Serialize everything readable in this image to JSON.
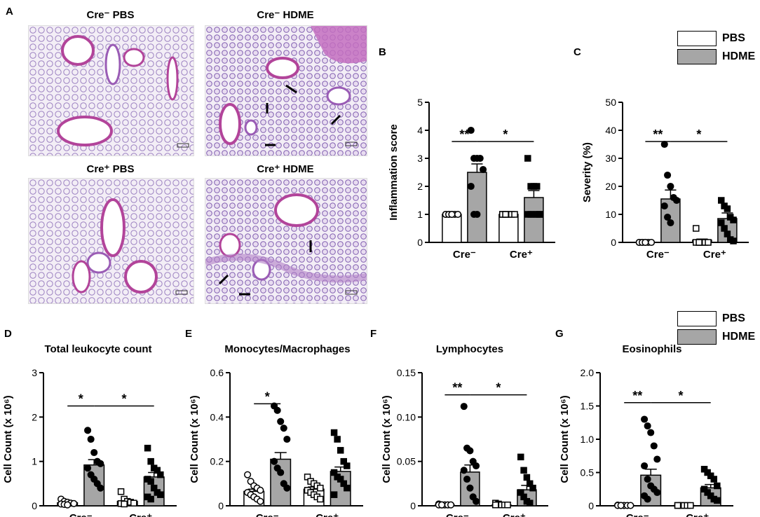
{
  "panel_labels": {
    "A": "A",
    "B": "B",
    "C": "C",
    "D": "D",
    "E": "E",
    "F": "F",
    "G": "G"
  },
  "histology": {
    "images": [
      {
        "title": "Cre⁻ PBS"
      },
      {
        "title": "Cre⁻ HDME"
      },
      {
        "title": "Cre⁺ PBS"
      },
      {
        "title": "Cre⁺ HDME"
      }
    ]
  },
  "legend_top": {
    "items": [
      {
        "label": "PBS",
        "color": "#ffffff"
      },
      {
        "label": "HDME",
        "color": "#a6a6a6"
      }
    ]
  },
  "legend_bottom": {
    "items": [
      {
        "label": "PBS",
        "color": "#ffffff"
      },
      {
        "label": "HDME",
        "color": "#a6a6a6"
      }
    ]
  },
  "colors": {
    "pbs": "#ffffff",
    "hdme": "#a6a6a6",
    "stroke": "#000000"
  },
  "chart_data": [
    {
      "id": "B",
      "type": "bar",
      "title": "",
      "ylabel": "Inflammation score",
      "ylim": [
        0,
        5
      ],
      "yticks": [
        {
          "v": 0,
          "t": "0"
        },
        {
          "v": 1,
          "t": "1"
        },
        {
          "v": 2,
          "t": "2"
        },
        {
          "v": 3,
          "t": "3"
        },
        {
          "v": 4,
          "t": "4"
        },
        {
          "v": 5,
          "t": "5"
        }
      ],
      "categories": [
        "Cre⁻",
        "Cre⁺"
      ],
      "series": [
        {
          "name": "PBS",
          "values": [
            1.0,
            1.0
          ],
          "sem": [
            0,
            0
          ]
        },
        {
          "name": "HDME",
          "values": [
            2.5,
            1.6
          ],
          "sem": [
            0.3,
            0.25
          ]
        }
      ],
      "points": {
        "pbs_marker": "circle",
        "hdme_marker": "circle",
        "pbs_marker2": "square",
        "hdme_marker2": "square",
        "cre_minus_pbs": [
          1,
          1,
          1,
          1,
          1,
          1,
          1,
          1
        ],
        "cre_minus_hdme": [
          4,
          3,
          3,
          3,
          2.6,
          2,
          1,
          1
        ],
        "cre_plus_pbs": [
          1,
          1,
          1,
          1,
          1,
          1,
          1
        ],
        "cre_plus_hdme": [
          3,
          2,
          2,
          2,
          1,
          1,
          1,
          1,
          1,
          1
        ]
      },
      "significance": [
        {
          "label": "**",
          "from": "cre_minus_pbs",
          "to": "cre_minus_hdme",
          "y": 3.6
        },
        {
          "label": "*",
          "from": "cre_minus_hdme",
          "to": "cre_plus_hdme",
          "y": 3.6
        }
      ]
    },
    {
      "id": "C",
      "type": "bar",
      "title": "",
      "ylabel": "Severity (%)",
      "ylim": [
        0,
        50
      ],
      "yticks": [
        {
          "v": 0,
          "t": "0"
        },
        {
          "v": 10,
          "t": "10"
        },
        {
          "v": 20,
          "t": "20"
        },
        {
          "v": 30,
          "t": "30"
        },
        {
          "v": 40,
          "t": "40"
        },
        {
          "v": 50,
          "t": "50"
        }
      ],
      "categories": [
        "Cre⁻",
        "Cre⁺"
      ],
      "series": [
        {
          "name": "PBS",
          "values": [
            0,
            0.8
          ],
          "sem": [
            0,
            0.4
          ]
        },
        {
          "name": "HDME",
          "values": [
            15.5,
            8.5
          ],
          "sem": [
            3.2,
            2.0
          ]
        }
      ],
      "points": {
        "cre_minus_pbs": [
          0,
          0,
          0,
          0,
          0,
          0,
          0,
          0
        ],
        "cre_minus_hdme": [
          35,
          24,
          20,
          16,
          15,
          13,
          9,
          7
        ],
        "cre_plus_pbs": [
          5,
          0,
          0,
          0,
          0,
          0,
          0
        ],
        "cre_plus_hdme": [
          15,
          13,
          12,
          9,
          8,
          7,
          5,
          3,
          1,
          0.5
        ]
      },
      "significance": [
        {
          "label": "**",
          "from": "cre_minus_pbs",
          "to": "cre_minus_hdme",
          "y": 36
        },
        {
          "label": "*",
          "from": "cre_minus_hdme",
          "to": "cre_plus_hdme",
          "y": 36
        }
      ]
    },
    {
      "id": "D",
      "type": "bar",
      "title": "Total leukocyte count",
      "ylabel": "Cell Count (x 10⁶)",
      "ylim": [
        0,
        3
      ],
      "yticks": [
        {
          "v": 0,
          "t": "0"
        },
        {
          "v": 1,
          "t": "1"
        },
        {
          "v": 2,
          "t": "2"
        },
        {
          "v": 3,
          "t": "3"
        }
      ],
      "categories": [
        "Cre⁻",
        "Cre⁺"
      ],
      "series": [
        {
          "name": "PBS",
          "values": [
            0.07,
            0.1
          ],
          "sem": [
            0.02,
            0.03
          ]
        },
        {
          "name": "HDME",
          "values": [
            0.92,
            0.65
          ],
          "sem": [
            0.12,
            0.1
          ]
        }
      ],
      "points": {
        "cre_minus_pbs": [
          0.15,
          0.1,
          0.08,
          0.06,
          0.05,
          0.04,
          0.03,
          0.02
        ],
        "cre_minus_hdme": [
          1.7,
          1.5,
          1.2,
          1.0,
          0.95,
          0.85,
          0.7,
          0.6,
          0.5,
          0.4
        ],
        "cre_plus_pbs": [
          0.32,
          0.15,
          0.1,
          0.08,
          0.06,
          0.05,
          0.04
        ],
        "cre_plus_hdme": [
          1.3,
          1.0,
          0.85,
          0.8,
          0.7,
          0.6,
          0.55,
          0.4,
          0.3,
          0.25,
          0.2,
          0.15
        ]
      },
      "significance": [
        {
          "label": "*",
          "from": "cre_minus_pbs",
          "to": "cre_minus_hdme",
          "y": 2.25
        },
        {
          "label": "*",
          "from": "cre_minus_hdme",
          "to": "cre_plus_hdme",
          "y": 2.25
        }
      ]
    },
    {
      "id": "E",
      "type": "bar",
      "title": "Monocytes/Macrophages",
      "ylabel": "Cell Count (x 10⁶)",
      "ylim": [
        0,
        0.6
      ],
      "yticks": [
        {
          "v": 0,
          "t": "0"
        },
        {
          "v": 0.2,
          "t": "0.2"
        },
        {
          "v": 0.4,
          "t": "0.4"
        },
        {
          "v": 0.6,
          "t": "0.6"
        }
      ],
      "categories": [
        "Cre⁻",
        "Cre⁺"
      ],
      "series": [
        {
          "name": "PBS",
          "values": [
            0.065,
            0.075
          ],
          "sem": [
            0.01,
            0.01
          ]
        },
        {
          "name": "HDME",
          "values": [
            0.21,
            0.155
          ],
          "sem": [
            0.03,
            0.02
          ]
        }
      ],
      "points": {
        "cre_minus_pbs": [
          0.14,
          0.11,
          0.09,
          0.08,
          0.07,
          0.06,
          0.05,
          0.04,
          0.03,
          0.02
        ],
        "cre_minus_hdme": [
          0.45,
          0.43,
          0.38,
          0.35,
          0.3,
          0.2,
          0.17,
          0.15,
          0.1,
          0.08
        ],
        "cre_plus_pbs": [
          0.13,
          0.11,
          0.1,
          0.09,
          0.08,
          0.07,
          0.06,
          0.05,
          0.04,
          0.03
        ],
        "cre_plus_hdme": [
          0.33,
          0.3,
          0.25,
          0.2,
          0.18,
          0.15,
          0.13,
          0.12,
          0.1,
          0.08,
          0.05
        ]
      },
      "significance": [
        {
          "label": "*",
          "from": "cre_minus_pbs",
          "to": "cre_minus_hdme",
          "y": 0.46
        }
      ]
    },
    {
      "id": "F",
      "type": "bar",
      "title": "Lymphocytes",
      "ylabel": "Cell Count (x 10⁶)",
      "ylim": [
        0,
        0.15
      ],
      "yticks": [
        {
          "v": 0,
          "t": "0"
        },
        {
          "v": 0.05,
          "t": "0.05"
        },
        {
          "v": 0.1,
          "t": "0.10"
        },
        {
          "v": 0.15,
          "t": "0.15"
        }
      ],
      "categories": [
        "Cre⁻",
        "Cre⁺"
      ],
      "series": [
        {
          "name": "PBS",
          "values": [
            0.001,
            0.001
          ],
          "sem": [
            0.0005,
            0.0005
          ]
        },
        {
          "name": "HDME",
          "values": [
            0.038,
            0.018
          ],
          "sem": [
            0.008,
            0.005
          ]
        }
      ],
      "points": {
        "cre_minus_pbs": [
          0.002,
          0.001,
          0.001,
          0.001,
          0.001,
          0.001,
          0.001
        ],
        "cre_minus_hdme": [
          0.112,
          0.065,
          0.062,
          0.05,
          0.045,
          0.04,
          0.03,
          0.02,
          0.01,
          0.005
        ],
        "cre_plus_pbs": [
          0.003,
          0.002,
          0.001,
          0.001,
          0.001,
          0.001
        ],
        "cre_plus_hdme": [
          0.055,
          0.04,
          0.032,
          0.025,
          0.02,
          0.015,
          0.01,
          0.005,
          0.003
        ]
      },
      "significance": [
        {
          "label": "**",
          "from": "cre_minus_pbs",
          "to": "cre_minus_hdme",
          "y": 0.125
        },
        {
          "label": "*",
          "from": "cre_minus_hdme",
          "to": "cre_plus_hdme",
          "y": 0.125
        }
      ]
    },
    {
      "id": "G",
      "type": "bar",
      "title": "Eosinophils",
      "ylabel": "Cell Count (x 10⁶)",
      "ylim": [
        0,
        2.0
      ],
      "yticks": [
        {
          "v": 0,
          "t": "0"
        },
        {
          "v": 0.5,
          "t": "0.5"
        },
        {
          "v": 1.0,
          "t": "1.0"
        },
        {
          "v": 1.5,
          "t": "1.5"
        },
        {
          "v": 2.0,
          "t": "2.0"
        }
      ],
      "categories": [
        "Cre⁻",
        "Cre⁺"
      ],
      "series": [
        {
          "name": "PBS",
          "values": [
            0.005,
            0.005
          ],
          "sem": [
            0.002,
            0.002
          ]
        },
        {
          "name": "HDME",
          "values": [
            0.46,
            0.27
          ],
          "sem": [
            0.09,
            0.05
          ]
        }
      ],
      "points": {
        "cre_minus_pbs": [
          0.01,
          0.005,
          0.005,
          0.005,
          0.005,
          0.005,
          0.005
        ],
        "cre_minus_hdme": [
          1.3,
          1.2,
          1.1,
          0.9,
          0.7,
          0.6,
          0.4,
          0.3,
          0.25,
          0.2,
          0.15,
          0.1
        ],
        "cre_plus_pbs": [
          0.005,
          0.005,
          0.005,
          0.005,
          0.005,
          0.005
        ],
        "cre_plus_hdme": [
          0.55,
          0.5,
          0.45,
          0.4,
          0.3,
          0.25,
          0.2,
          0.15,
          0.1,
          0.08
        ]
      },
      "significance": [
        {
          "label": "**",
          "from": "cre_minus_pbs",
          "to": "cre_minus_hdme",
          "y": 1.55
        },
        {
          "label": "*",
          "from": "cre_minus_hdme",
          "to": "cre_plus_hdme",
          "y": 1.55
        }
      ]
    }
  ]
}
